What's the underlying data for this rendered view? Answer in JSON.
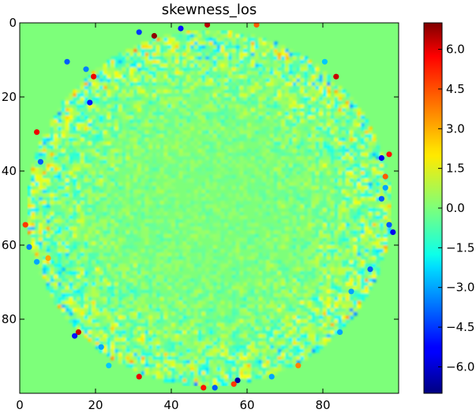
{
  "chart_data": {
    "type": "heatmap",
    "title": "skewness_los",
    "xlabel": "",
    "ylabel": "",
    "xlim": [
      0,
      100
    ],
    "ylim": [
      100,
      0
    ],
    "x_ticks": [
      0,
      20,
      40,
      60,
      80
    ],
    "x_tick_labels": [
      "0",
      "20",
      "40",
      "60",
      "80"
    ],
    "y_ticks": [
      0,
      20,
      40,
      60,
      80
    ],
    "y_tick_labels": [
      "0",
      "20",
      "40",
      "60",
      "80"
    ],
    "grid_size": [
      100,
      100
    ],
    "colormap": "jet",
    "value_range": [
      -7,
      7
    ],
    "background_value": 0.0,
    "disk": {
      "center": [
        50,
        50
      ],
      "radius": 48
    },
    "pattern": "near-zero skewness inside the circular disk with small noise; noise amplitude and isolated extreme points increase toward the disk edge; uniform 0 outside the disk",
    "colorbar": {
      "ticks": [
        6.0,
        4.5,
        3.0,
        1.5,
        0.0,
        -1.5,
        -3.0,
        -4.5,
        -6.0
      ],
      "tick_labels": [
        "6.0",
        "4.5",
        "3.0",
        "1.5",
        "0.0",
        "−1.5",
        "−3.0",
        "−4.5",
        "−6.0"
      ]
    },
    "notable_points": [
      {
        "x": 35,
        "y": 3,
        "value": 6.8
      },
      {
        "x": 31,
        "y": 2,
        "value": -4.5
      },
      {
        "x": 42,
        "y": 1,
        "value": -5.0
      },
      {
        "x": 49,
        "y": 0,
        "value": 6.2
      },
      {
        "x": 62,
        "y": 0,
        "value": 4.0
      },
      {
        "x": 12,
        "y": 10,
        "value": -4.0
      },
      {
        "x": 17,
        "y": 12,
        "value": -3.5
      },
      {
        "x": 19,
        "y": 14,
        "value": 5.5
      },
      {
        "x": 18,
        "y": 21,
        "value": -5.0
      },
      {
        "x": 83,
        "y": 14,
        "value": 6.0
      },
      {
        "x": 80,
        "y": 10,
        "value": -2.5
      },
      {
        "x": 4,
        "y": 29,
        "value": 5.5
      },
      {
        "x": 5,
        "y": 37,
        "value": -4.0
      },
      {
        "x": 97,
        "y": 35,
        "value": 5.0
      },
      {
        "x": 95,
        "y": 36,
        "value": -5.5
      },
      {
        "x": 96,
        "y": 41,
        "value": 4.0
      },
      {
        "x": 96,
        "y": 44,
        "value": -3.0
      },
      {
        "x": 95,
        "y": 47,
        "value": -4.0
      },
      {
        "x": 1,
        "y": 54,
        "value": 4.5
      },
      {
        "x": 2,
        "y": 60,
        "value": -3.5
      },
      {
        "x": 4,
        "y": 64,
        "value": -3.0
      },
      {
        "x": 98,
        "y": 56,
        "value": -5.5
      },
      {
        "x": 97,
        "y": 54,
        "value": -4.0
      },
      {
        "x": 7,
        "y": 63,
        "value": 3.0
      },
      {
        "x": 92,
        "y": 66,
        "value": -4.0
      },
      {
        "x": 87,
        "y": 72,
        "value": -3.0
      },
      {
        "x": 15,
        "y": 83,
        "value": 6.0
      },
      {
        "x": 14,
        "y": 84,
        "value": -5.0
      },
      {
        "x": 21,
        "y": 87,
        "value": -3.0
      },
      {
        "x": 23,
        "y": 92,
        "value": -2.5
      },
      {
        "x": 31,
        "y": 95,
        "value": 5.5
      },
      {
        "x": 48,
        "y": 98,
        "value": 5.0
      },
      {
        "x": 51,
        "y": 98,
        "value": -4.0
      },
      {
        "x": 57,
        "y": 96,
        "value": -6.5
      },
      {
        "x": 56,
        "y": 97,
        "value": 4.5
      },
      {
        "x": 66,
        "y": 95,
        "value": -3.0
      },
      {
        "x": 73,
        "y": 92,
        "value": 3.5
      },
      {
        "x": 84,
        "y": 83,
        "value": -3.0
      }
    ]
  }
}
